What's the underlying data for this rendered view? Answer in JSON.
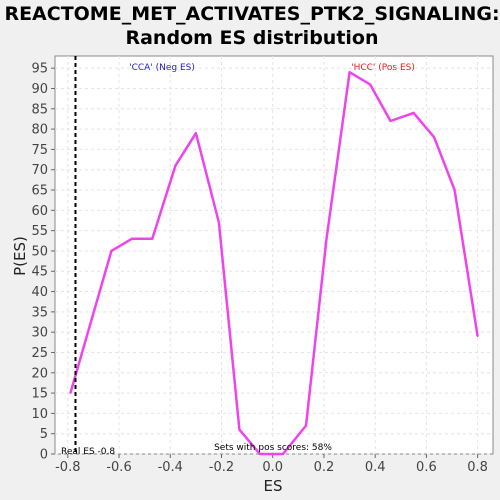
{
  "chart_data": {
    "type": "line",
    "title_line1": "REACTOME_MET_ACTIVATES_PTK2_SIGNALING:",
    "title_line2": "Random ES distribution",
    "xlabel": "ES",
    "ylabel": "P(ES)",
    "xlim": [
      -0.85,
      0.86
    ],
    "ylim": [
      0,
      98
    ],
    "xticks": [
      -0.8,
      -0.6,
      -0.4,
      -0.2,
      0.0,
      0.2,
      0.4,
      0.6,
      0.8
    ],
    "xtick_labels": [
      "-0.8",
      "-0.6",
      "-0.4",
      "-0.2",
      "0.0",
      "0.2",
      "0.4",
      "0.6",
      "0.8"
    ],
    "yticks": [
      0,
      5,
      10,
      15,
      20,
      25,
      30,
      35,
      40,
      45,
      50,
      55,
      60,
      65,
      70,
      75,
      80,
      85,
      90,
      95
    ],
    "grid": true,
    "series": [
      {
        "color": "#ee44ee",
        "x": [
          -0.79,
          -0.63,
          -0.55,
          -0.47,
          -0.38,
          -0.3,
          -0.21,
          -0.13,
          -0.05,
          0.04,
          0.13,
          0.21,
          0.3,
          0.38,
          0.46,
          0.55,
          0.63,
          0.71,
          0.8
        ],
        "y": [
          15,
          50,
          53,
          53,
          71,
          79,
          57,
          6,
          0,
          0,
          7,
          53,
          94,
          91,
          82,
          84,
          78,
          65,
          29
        ]
      }
    ],
    "real_es": {
      "x": -0.77,
      "label": "Real ES -0.8"
    },
    "annotations": {
      "neg": {
        "text": "'CCA' (Neg ES)",
        "color": "#2222cc"
      },
      "pos": {
        "text": "'HCC' (Pos ES)",
        "color": "#dd2222"
      },
      "pos_scores": "Sets with pos scores: 58%"
    }
  }
}
